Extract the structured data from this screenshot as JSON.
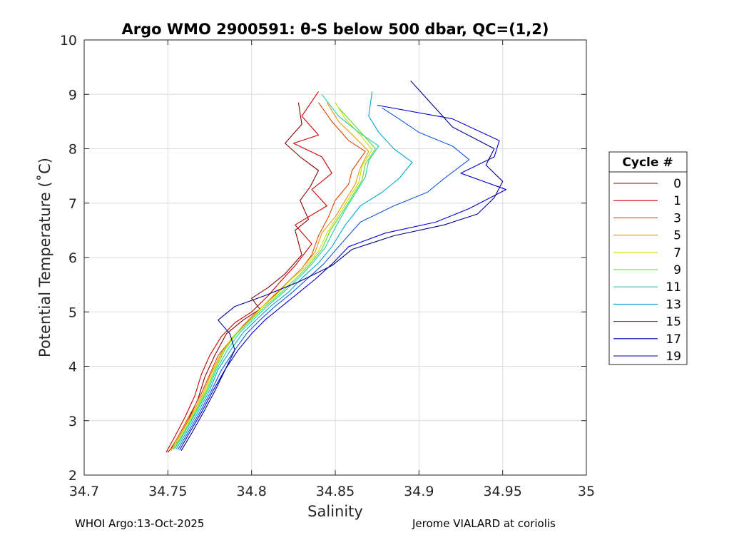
{
  "chart_data": {
    "type": "line",
    "title": "Argo WMO 2900591: θ-S below 500 dbar,  QC=(1,2)",
    "xlabel": "Salinity",
    "ylabel": "Potential Temperature (˚C)",
    "xlim": [
      34.7,
      35
    ],
    "ylim": [
      2,
      10
    ],
    "xticks": [
      "34.7",
      "34.75",
      "34.8",
      "34.85",
      "34.9",
      "34.95",
      "35"
    ],
    "yticks": [
      "2",
      "3",
      "4",
      "5",
      "6",
      "7",
      "8",
      "9",
      "10"
    ],
    "grid": true,
    "legend": {
      "title": "Cycle #",
      "position": "outside-right"
    },
    "series": [
      {
        "name": "0",
        "color": "#8b0000",
        "points": [
          [
            34.75,
            2.42
          ],
          [
            34.755,
            2.6
          ],
          [
            34.762,
            3.0
          ],
          [
            34.768,
            3.4
          ],
          [
            34.772,
            3.8
          ],
          [
            34.778,
            4.2
          ],
          [
            34.785,
            4.6
          ],
          [
            34.795,
            4.85
          ],
          [
            34.805,
            5.05
          ],
          [
            34.8,
            5.25
          ],
          [
            34.81,
            5.45
          ],
          [
            34.82,
            5.7
          ],
          [
            34.83,
            6.05
          ],
          [
            34.826,
            6.5
          ],
          [
            34.834,
            6.7
          ],
          [
            34.829,
            7.05
          ],
          [
            34.835,
            7.3
          ],
          [
            34.84,
            7.6
          ],
          [
            34.829,
            7.85
          ],
          [
            34.82,
            8.1
          ],
          [
            34.83,
            8.45
          ],
          [
            34.828,
            8.85
          ]
        ]
      },
      {
        "name": "1",
        "color": "#cc0000",
        "points": [
          [
            34.749,
            2.42
          ],
          [
            34.754,
            2.7
          ],
          [
            34.76,
            3.05
          ],
          [
            34.766,
            3.45
          ],
          [
            34.77,
            3.85
          ],
          [
            34.775,
            4.2
          ],
          [
            34.782,
            4.55
          ],
          [
            34.79,
            4.8
          ],
          [
            34.8,
            5.0
          ],
          [
            34.81,
            5.3
          ],
          [
            34.817,
            5.55
          ],
          [
            34.826,
            5.85
          ],
          [
            34.836,
            6.25
          ],
          [
            34.826,
            6.6
          ],
          [
            34.845,
            6.95
          ],
          [
            34.836,
            7.25
          ],
          [
            34.848,
            7.55
          ],
          [
            34.842,
            7.85
          ],
          [
            34.825,
            8.1
          ],
          [
            34.84,
            8.25
          ],
          [
            34.83,
            8.6
          ],
          [
            34.84,
            9.05
          ]
        ]
      },
      {
        "name": "3",
        "color": "#dd4400",
        "points": [
          [
            34.751,
            2.45
          ],
          [
            34.756,
            2.7
          ],
          [
            34.763,
            3.1
          ],
          [
            34.77,
            3.5
          ],
          [
            34.775,
            3.85
          ],
          [
            34.78,
            4.2
          ],
          [
            34.788,
            4.5
          ],
          [
            34.795,
            4.75
          ],
          [
            34.803,
            5.0
          ],
          [
            34.812,
            5.25
          ],
          [
            34.82,
            5.5
          ],
          [
            34.83,
            5.8
          ],
          [
            34.836,
            6.05
          ],
          [
            34.84,
            6.4
          ],
          [
            34.846,
            6.75
          ],
          [
            34.85,
            7.05
          ],
          [
            34.858,
            7.35
          ],
          [
            34.86,
            7.6
          ],
          [
            34.868,
            7.95
          ],
          [
            34.858,
            8.15
          ],
          [
            34.848,
            8.5
          ],
          [
            34.84,
            8.85
          ]
        ]
      },
      {
        "name": "5",
        "color": "#ee9900",
        "points": [
          [
            34.752,
            2.45
          ],
          [
            34.757,
            2.72
          ],
          [
            34.764,
            3.1
          ],
          [
            34.771,
            3.5
          ],
          [
            34.776,
            3.88
          ],
          [
            34.782,
            4.25
          ],
          [
            34.789,
            4.55
          ],
          [
            34.797,
            4.8
          ],
          [
            34.805,
            5.05
          ],
          [
            34.813,
            5.3
          ],
          [
            34.822,
            5.55
          ],
          [
            34.83,
            5.8
          ],
          [
            34.838,
            6.1
          ],
          [
            34.842,
            6.45
          ],
          [
            34.85,
            6.75
          ],
          [
            34.856,
            7.05
          ],
          [
            34.862,
            7.35
          ],
          [
            34.865,
            7.65
          ],
          [
            34.87,
            7.95
          ],
          [
            34.862,
            8.2
          ],
          [
            34.852,
            8.5
          ],
          [
            34.845,
            8.85
          ]
        ]
      },
      {
        "name": "7",
        "color": "#ccdd00",
        "points": [
          [
            34.752,
            2.46
          ],
          [
            34.758,
            2.75
          ],
          [
            34.765,
            3.12
          ],
          [
            34.772,
            3.52
          ],
          [
            34.777,
            3.9
          ],
          [
            34.783,
            4.28
          ],
          [
            34.79,
            4.58
          ],
          [
            34.798,
            4.82
          ],
          [
            34.806,
            5.08
          ],
          [
            34.815,
            5.32
          ],
          [
            34.823,
            5.58
          ],
          [
            34.832,
            5.82
          ],
          [
            34.84,
            6.12
          ],
          [
            34.845,
            6.45
          ],
          [
            34.852,
            6.78
          ],
          [
            34.858,
            7.08
          ],
          [
            34.864,
            7.38
          ],
          [
            34.866,
            7.68
          ],
          [
            34.872,
            7.98
          ],
          [
            34.865,
            8.25
          ],
          [
            34.856,
            8.55
          ],
          [
            34.85,
            8.85
          ]
        ]
      },
      {
        "name": "9",
        "color": "#55dd33",
        "points": [
          [
            34.753,
            2.47
          ],
          [
            34.759,
            2.76
          ],
          [
            34.766,
            3.14
          ],
          [
            34.773,
            3.54
          ],
          [
            34.778,
            3.92
          ],
          [
            34.784,
            4.3
          ],
          [
            34.791,
            4.6
          ],
          [
            34.799,
            4.84
          ],
          [
            34.808,
            5.1
          ],
          [
            34.817,
            5.34
          ],
          [
            34.826,
            5.6
          ],
          [
            34.834,
            5.85
          ],
          [
            34.842,
            6.15
          ],
          [
            34.847,
            6.5
          ],
          [
            34.854,
            6.82
          ],
          [
            34.86,
            7.12
          ],
          [
            34.866,
            7.42
          ],
          [
            34.868,
            7.72
          ],
          [
            34.874,
            8.0
          ],
          [
            34.866,
            8.28
          ],
          [
            34.858,
            8.55
          ],
          [
            34.852,
            8.75
          ]
        ]
      },
      {
        "name": "11",
        "color": "#22ccaa",
        "points": [
          [
            34.754,
            2.48
          ],
          [
            34.76,
            2.78
          ],
          [
            34.767,
            3.16
          ],
          [
            34.774,
            3.56
          ],
          [
            34.779,
            3.94
          ],
          [
            34.786,
            4.32
          ],
          [
            34.793,
            4.62
          ],
          [
            34.801,
            4.86
          ],
          [
            34.81,
            5.12
          ],
          [
            34.819,
            5.36
          ],
          [
            34.828,
            5.62
          ],
          [
            34.836,
            5.88
          ],
          [
            34.844,
            6.18
          ],
          [
            34.85,
            6.55
          ],
          [
            34.856,
            6.88
          ],
          [
            34.862,
            7.18
          ],
          [
            34.868,
            7.48
          ],
          [
            34.87,
            7.78
          ],
          [
            34.876,
            8.05
          ],
          [
            34.864,
            8.3
          ],
          [
            34.852,
            8.6
          ],
          [
            34.842,
            9.0
          ]
        ]
      },
      {
        "name": "13",
        "color": "#00aacc",
        "points": [
          [
            34.755,
            2.48
          ],
          [
            34.761,
            2.78
          ],
          [
            34.768,
            3.16
          ],
          [
            34.775,
            3.56
          ],
          [
            34.78,
            3.94
          ],
          [
            34.788,
            4.32
          ],
          [
            34.795,
            4.62
          ],
          [
            34.803,
            4.86
          ],
          [
            34.812,
            5.12
          ],
          [
            34.822,
            5.36
          ],
          [
            34.83,
            5.62
          ],
          [
            34.84,
            5.9
          ],
          [
            34.848,
            6.2
          ],
          [
            34.856,
            6.6
          ],
          [
            34.865,
            6.95
          ],
          [
            34.878,
            7.2
          ],
          [
            34.888,
            7.45
          ],
          [
            34.896,
            7.75
          ],
          [
            34.885,
            8.0
          ],
          [
            34.876,
            8.3
          ],
          [
            34.87,
            8.6
          ],
          [
            34.872,
            9.05
          ]
        ]
      },
      {
        "name": "15",
        "color": "#1155dd",
        "points": [
          [
            34.756,
            2.47
          ],
          [
            34.762,
            2.78
          ],
          [
            34.769,
            3.15
          ],
          [
            34.776,
            3.55
          ],
          [
            34.782,
            3.93
          ],
          [
            34.79,
            4.3
          ],
          [
            34.797,
            4.6
          ],
          [
            34.805,
            4.85
          ],
          [
            34.814,
            5.1
          ],
          [
            34.824,
            5.35
          ],
          [
            34.833,
            5.6
          ],
          [
            34.843,
            5.88
          ],
          [
            34.852,
            6.2
          ],
          [
            34.865,
            6.65
          ],
          [
            34.885,
            6.95
          ],
          [
            34.905,
            7.2
          ],
          [
            34.915,
            7.45
          ],
          [
            34.93,
            7.8
          ],
          [
            34.92,
            8.05
          ],
          [
            34.9,
            8.3
          ],
          [
            34.888,
            8.55
          ],
          [
            34.878,
            8.75
          ]
        ]
      },
      {
        "name": "17",
        "color": "#0000cc",
        "points": [
          [
            34.757,
            2.46
          ],
          [
            34.763,
            2.78
          ],
          [
            34.77,
            3.15
          ],
          [
            34.777,
            3.55
          ],
          [
            34.784,
            3.93
          ],
          [
            34.792,
            4.3
          ],
          [
            34.8,
            4.6
          ],
          [
            34.808,
            4.85
          ],
          [
            34.818,
            5.1
          ],
          [
            34.828,
            5.35
          ],
          [
            34.838,
            5.6
          ],
          [
            34.848,
            5.88
          ],
          [
            34.858,
            6.2
          ],
          [
            34.88,
            6.45
          ],
          [
            34.91,
            6.65
          ],
          [
            34.93,
            6.9
          ],
          [
            34.952,
            7.25
          ],
          [
            34.925,
            7.55
          ],
          [
            34.945,
            7.85
          ],
          [
            34.948,
            8.15
          ],
          [
            34.92,
            8.55
          ],
          [
            34.875,
            8.8
          ]
        ]
      },
      {
        "name": "19",
        "color": "#000088",
        "points": [
          [
            34.758,
            2.45
          ],
          [
            34.764,
            2.76
          ],
          [
            34.771,
            3.14
          ],
          [
            34.778,
            3.54
          ],
          [
            34.784,
            3.92
          ],
          [
            34.79,
            4.3
          ],
          [
            34.787,
            4.6
          ],
          [
            34.78,
            4.85
          ],
          [
            34.79,
            5.1
          ],
          [
            34.808,
            5.3
          ],
          [
            34.828,
            5.55
          ],
          [
            34.848,
            5.85
          ],
          [
            34.86,
            6.15
          ],
          [
            34.885,
            6.4
          ],
          [
            34.915,
            6.6
          ],
          [
            34.935,
            6.8
          ],
          [
            34.945,
            7.1
          ],
          [
            34.95,
            7.4
          ],
          [
            34.94,
            7.7
          ],
          [
            34.945,
            8.0
          ],
          [
            34.92,
            8.4
          ],
          [
            34.895,
            9.25
          ]
        ]
      }
    ]
  },
  "footer": {
    "left": "WHOI Argo:13-Oct-2025",
    "right": "Jerome VIALARD at coriolis"
  }
}
